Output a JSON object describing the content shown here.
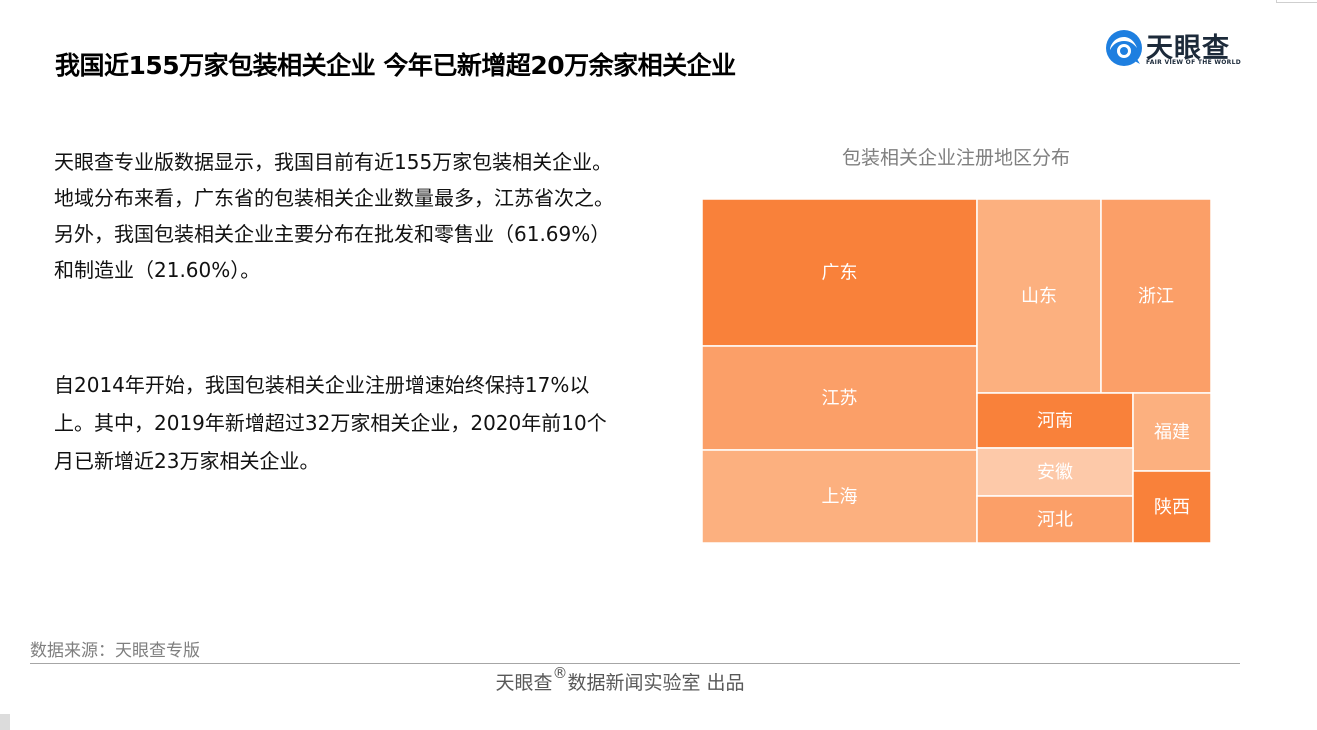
{
  "header": {
    "title": "我国近155万家包装相关企业 今年已新增超20万余家相关企业",
    "logo_text": "天眼查",
    "logo_subtitle": "FAIR VIEW OF THE WORLD"
  },
  "body": {
    "paragraph1": "天眼查专业版数据显示，我国目前有近155万家包装相关企业。地域分布来看，广东省的包装相关企业数量最多，江苏省次之。另外，我国包装相关企业主要分布在批发和零售业（61.69%）和制造业（21.60%）。",
    "paragraph2": "自2014年开始，我国包装相关企业注册增速始终保持17%以上。其中，2019年新增超过32万家相关企业，2020年前10个月已新增近23万家相关企业。"
  },
  "chart_data": {
    "type": "treemap",
    "title": "包装相关企业注册地区分布",
    "categories": [
      "广东",
      "江苏",
      "上海",
      "山东",
      "浙江",
      "河南",
      "福建",
      "安徽",
      "河北",
      "陕西"
    ],
    "colors": {
      "广东": "#f9813a",
      "江苏": "#fb9f68",
      "上海": "#fcb07f",
      "山东": "#fcb07f",
      "浙江": "#fb9f68",
      "河南": "#f9813a",
      "福建": "#fcb07f",
      "安徽": "#fdc9a9",
      "河北": "#fb9f68",
      "陕西": "#f9813a"
    }
  },
  "footer": {
    "source": "数据来源：天眼查专版",
    "credit_brand": "天眼查",
    "credit_mark": "®",
    "credit_rest": "数据新闻实验室 出品"
  }
}
